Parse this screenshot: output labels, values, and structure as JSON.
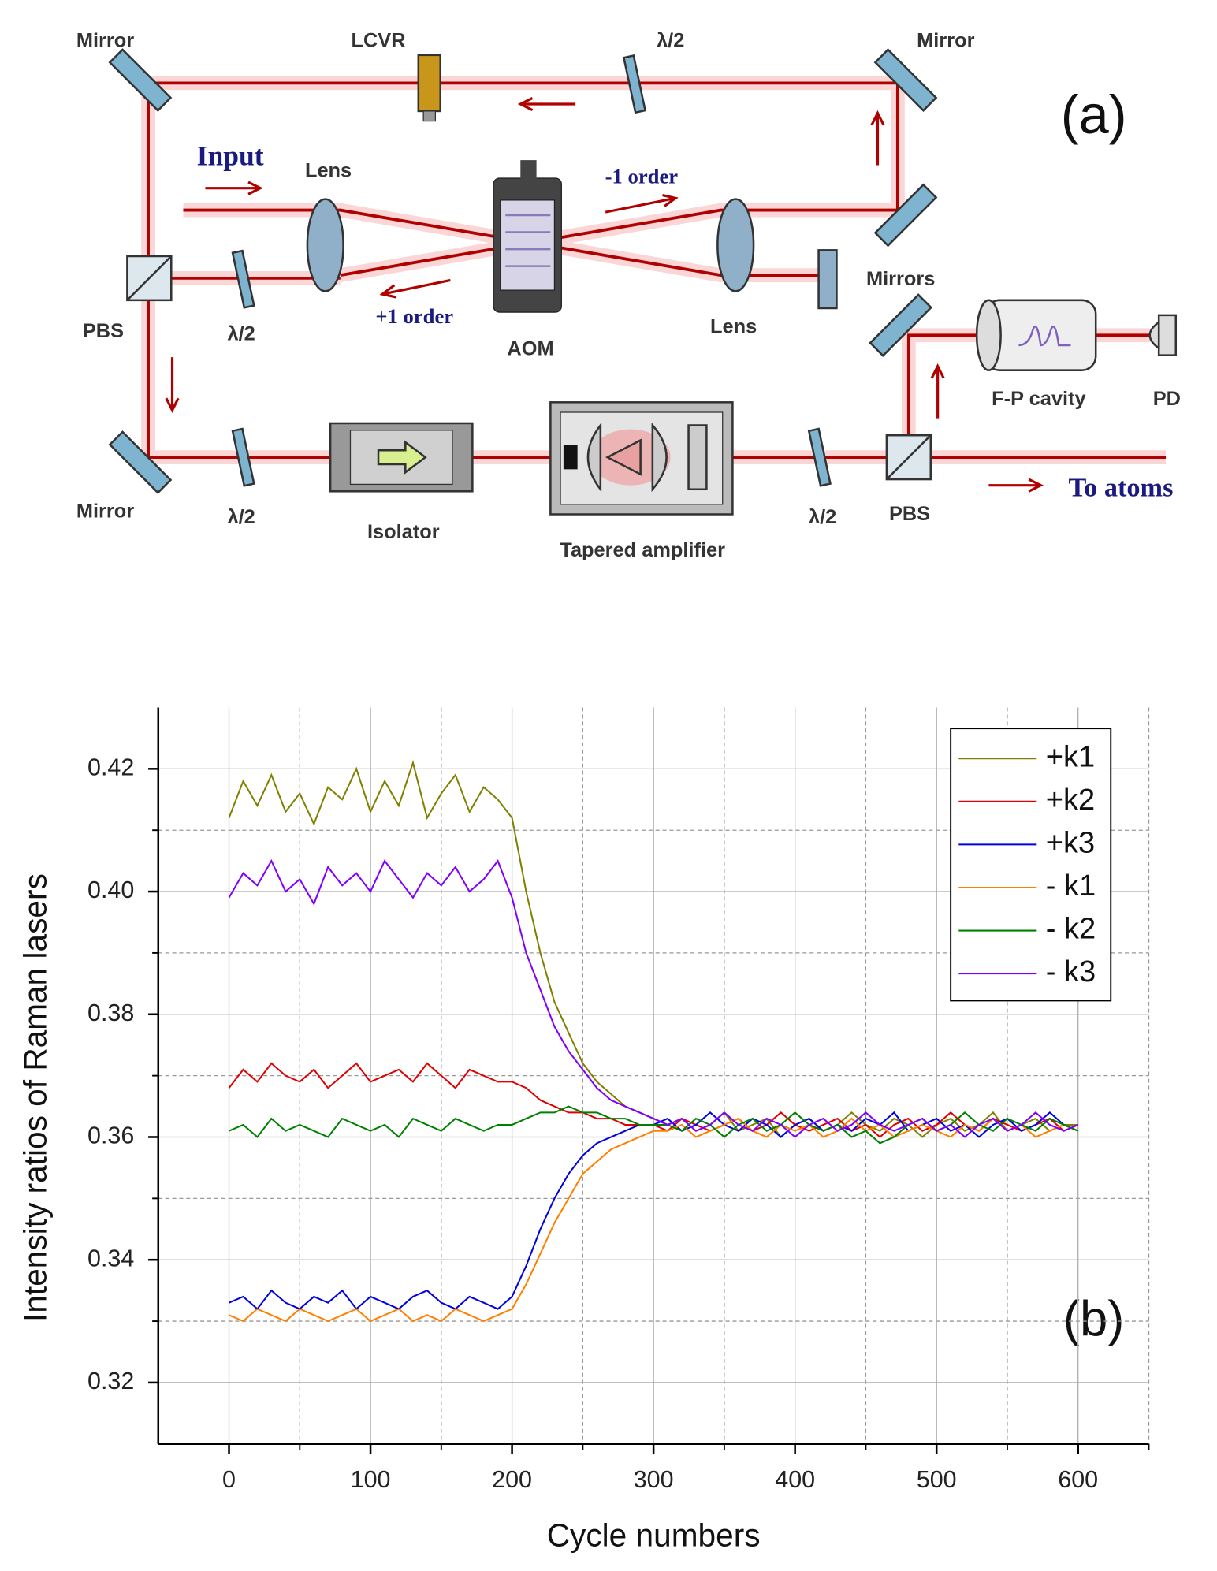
{
  "diagram": {
    "panel_label": "(a)",
    "labels": [
      "Mirror",
      "LCVR",
      "λ/2",
      "Mirror",
      "Input",
      "Lens",
      "-1 order",
      "Mirrors",
      "PBS",
      "λ/2",
      "+1 order",
      "AOM",
      "Lens",
      "F-P cavity",
      "PD",
      "Mirror",
      "λ/2",
      "Isolator",
      "Tapered amplifier",
      "λ/2",
      "PBS",
      "To atoms"
    ]
  },
  "chart_data": {
    "type": "line",
    "panel_label": "(b)",
    "xlabel": "Cycle numbers",
    "ylabel": "Intensity ratios of Raman lasers",
    "xlim": [
      -50,
      650
    ],
    "ylim": [
      0.31,
      0.43
    ],
    "xticks": [
      0,
      100,
      200,
      300,
      400,
      500,
      600
    ],
    "xminorticks": [
      50,
      150,
      250,
      350,
      450,
      550,
      650
    ],
    "yticks": [
      0.32,
      0.34,
      0.36,
      0.38,
      {
        "value": 0.4,
        "label": "0.40"
      },
      0.42
    ],
    "yminorticks": [
      0.33,
      0.35,
      0.37,
      0.39,
      0.41
    ],
    "grid": true,
    "legend": "upper right",
    "x": [
      0,
      10,
      20,
      30,
      40,
      50,
      60,
      70,
      80,
      90,
      100,
      110,
      120,
      130,
      140,
      150,
      160,
      170,
      180,
      190,
      200,
      210,
      220,
      230,
      240,
      250,
      260,
      270,
      280,
      290,
      300,
      310,
      320,
      330,
      340,
      350,
      360,
      370,
      380,
      390,
      400,
      410,
      420,
      430,
      440,
      450,
      460,
      470,
      480,
      490,
      500,
      510,
      520,
      530,
      540,
      550,
      560,
      570,
      580,
      590,
      600
    ],
    "series": [
      {
        "name": "+k1",
        "color": "#808000",
        "values": [
          0.412,
          0.418,
          0.414,
          0.419,
          0.413,
          0.416,
          0.411,
          0.417,
          0.415,
          0.42,
          0.413,
          0.418,
          0.414,
          0.421,
          0.412,
          0.416,
          0.419,
          0.413,
          0.417,
          0.415,
          0.412,
          0.4,
          0.39,
          0.382,
          0.377,
          0.372,
          0.369,
          0.367,
          0.365,
          0.364,
          0.363,
          0.362,
          0.363,
          0.361,
          0.362,
          0.364,
          0.361,
          0.362,
          0.363,
          0.36,
          0.362,
          0.363,
          0.361,
          0.362,
          0.364,
          0.362,
          0.361,
          0.363,
          0.362,
          0.36,
          0.362,
          0.363,
          0.361,
          0.362,
          0.364,
          0.361,
          0.362,
          0.363,
          0.361,
          0.362,
          0.362
        ]
      },
      {
        "name": "+k2",
        "color": "#e00000",
        "values": [
          0.368,
          0.371,
          0.369,
          0.372,
          0.37,
          0.369,
          0.371,
          0.368,
          0.37,
          0.372,
          0.369,
          0.37,
          0.371,
          0.369,
          0.372,
          0.37,
          0.368,
          0.371,
          0.37,
          0.369,
          0.369,
          0.368,
          0.366,
          0.365,
          0.364,
          0.364,
          0.363,
          0.363,
          0.362,
          0.362,
          0.362,
          0.361,
          0.363,
          0.362,
          0.361,
          0.362,
          0.363,
          0.361,
          0.362,
          0.364,
          0.362,
          0.361,
          0.362,
          0.363,
          0.361,
          0.362,
          0.36,
          0.362,
          0.363,
          0.361,
          0.362,
          0.364,
          0.362,
          0.361,
          0.363,
          0.362,
          0.361,
          0.362,
          0.363,
          0.361,
          0.362
        ]
      },
      {
        "name": "+k3",
        "color": "#0000e0",
        "values": [
          0.333,
          0.334,
          0.332,
          0.335,
          0.333,
          0.332,
          0.334,
          0.333,
          0.335,
          0.332,
          0.334,
          0.333,
          0.332,
          0.334,
          0.335,
          0.333,
          0.332,
          0.334,
          0.333,
          0.332,
          0.334,
          0.339,
          0.345,
          0.35,
          0.354,
          0.357,
          0.359,
          0.36,
          0.361,
          0.362,
          0.362,
          0.363,
          0.361,
          0.362,
          0.364,
          0.362,
          0.361,
          0.363,
          0.362,
          0.36,
          0.362,
          0.363,
          0.361,
          0.362,
          0.361,
          0.363,
          0.362,
          0.364,
          0.361,
          0.362,
          0.363,
          0.361,
          0.362,
          0.36,
          0.362,
          0.363,
          0.361,
          0.362,
          0.364,
          0.362,
          0.361
        ]
      },
      {
        "name": "- k1",
        "color": "#ff8000",
        "values": [
          0.331,
          0.33,
          0.332,
          0.331,
          0.33,
          0.332,
          0.331,
          0.33,
          0.331,
          0.332,
          0.33,
          0.331,
          0.332,
          0.33,
          0.331,
          0.33,
          0.332,
          0.331,
          0.33,
          0.331,
          0.332,
          0.336,
          0.341,
          0.346,
          0.35,
          0.354,
          0.356,
          0.358,
          0.359,
          0.36,
          0.361,
          0.361,
          0.362,
          0.36,
          0.361,
          0.362,
          0.363,
          0.361,
          0.36,
          0.362,
          0.361,
          0.362,
          0.36,
          0.361,
          0.363,
          0.361,
          0.362,
          0.36,
          0.361,
          0.362,
          0.361,
          0.36,
          0.362,
          0.361,
          0.363,
          0.361,
          0.362,
          0.36,
          0.361,
          0.362,
          0.361
        ]
      },
      {
        "name": "- k2",
        "color": "#008000",
        "values": [
          0.361,
          0.362,
          0.36,
          0.363,
          0.361,
          0.362,
          0.361,
          0.36,
          0.363,
          0.362,
          0.361,
          0.362,
          0.36,
          0.363,
          0.362,
          0.361,
          0.363,
          0.362,
          0.361,
          0.362,
          0.362,
          0.363,
          0.364,
          0.364,
          0.365,
          0.364,
          0.364,
          0.363,
          0.363,
          0.362,
          0.362,
          0.362,
          0.361,
          0.363,
          0.362,
          0.36,
          0.362,
          0.363,
          0.361,
          0.362,
          0.364,
          0.362,
          0.361,
          0.362,
          0.36,
          0.361,
          0.359,
          0.36,
          0.362,
          0.363,
          0.361,
          0.362,
          0.364,
          0.362,
          0.361,
          0.363,
          0.362,
          0.361,
          0.363,
          0.362,
          0.361
        ]
      },
      {
        "name": "- k3",
        "color": "#8000ff",
        "values": [
          0.399,
          0.403,
          0.401,
          0.405,
          0.4,
          0.402,
          0.398,
          0.404,
          0.401,
          0.403,
          0.4,
          0.405,
          0.402,
          0.399,
          0.403,
          0.401,
          0.404,
          0.4,
          0.402,
          0.405,
          0.399,
          0.39,
          0.384,
          0.378,
          0.374,
          0.371,
          0.368,
          0.366,
          0.365,
          0.364,
          0.363,
          0.362,
          0.363,
          0.361,
          0.362,
          0.364,
          0.362,
          0.361,
          0.363,
          0.362,
          0.36,
          0.362,
          0.363,
          0.361,
          0.362,
          0.364,
          0.362,
          0.361,
          0.362,
          0.363,
          0.361,
          0.362,
          0.36,
          0.362,
          0.363,
          0.361,
          0.362,
          0.364,
          0.362,
          0.361,
          0.362
        ]
      }
    ]
  }
}
